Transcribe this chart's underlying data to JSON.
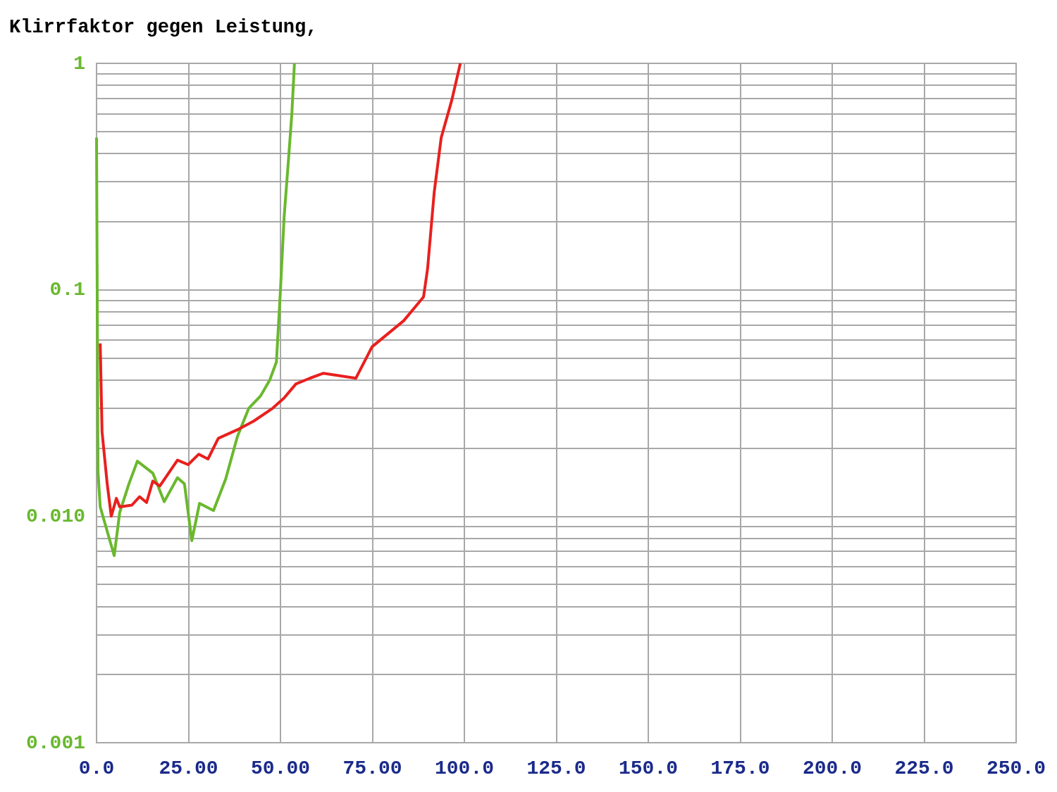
{
  "chart_data": {
    "type": "line",
    "title": "Klirrfaktor gegen Leistung,",
    "log": "y",
    "grid": true,
    "marker": "none",
    "line_style": "solid",
    "xlim": [
      0,
      250
    ],
    "xticks": [
      {
        "value": 0,
        "label": "0.0"
      },
      {
        "value": 25,
        "label": "25.00"
      },
      {
        "value": 50,
        "label": "50.00"
      },
      {
        "value": 75,
        "label": "75.00"
      },
      {
        "value": 100,
        "label": "100.0"
      },
      {
        "value": 125,
        "label": "125.0"
      },
      {
        "value": 150,
        "label": "150.0"
      },
      {
        "value": 175,
        "label": "175.0"
      },
      {
        "value": 200,
        "label": "200.0"
      },
      {
        "value": 225,
        "label": "225.0"
      },
      {
        "value": 250,
        "label": "250.0"
      }
    ],
    "ylim": [
      0.001,
      1
    ],
    "yticks": [
      {
        "value": 0.001,
        "label": "0.001"
      },
      {
        "value": 0.002,
        "label": null
      },
      {
        "value": 0.003,
        "label": null
      },
      {
        "value": 0.004,
        "label": null
      },
      {
        "value": 0.005,
        "label": null
      },
      {
        "value": 0.006,
        "label": null
      },
      {
        "value": 0.007,
        "label": null
      },
      {
        "value": 0.008,
        "label": null
      },
      {
        "value": 0.009,
        "label": null
      },
      {
        "value": 0.01,
        "label": "0.010"
      },
      {
        "value": 0.02,
        "label": null
      },
      {
        "value": 0.03,
        "label": null
      },
      {
        "value": 0.04,
        "label": null
      },
      {
        "value": 0.05,
        "label": null
      },
      {
        "value": 0.06,
        "label": null
      },
      {
        "value": 0.07,
        "label": null
      },
      {
        "value": 0.08,
        "label": null
      },
      {
        "value": 0.09,
        "label": null
      },
      {
        "value": 0.1,
        "label": "0.1"
      },
      {
        "value": 0.2,
        "label": null
      },
      {
        "value": 0.3,
        "label": null
      },
      {
        "value": 0.4,
        "label": null
      },
      {
        "value": 0.5,
        "label": null
      },
      {
        "value": 0.6,
        "label": null
      },
      {
        "value": 0.7,
        "label": null
      },
      {
        "value": 0.8,
        "label": null
      },
      {
        "value": 0.9,
        "label": null
      },
      {
        "value": 1,
        "label": "1"
      }
    ],
    "series": [
      {
        "color": "#6ab82e",
        "x": [
          0,
          0.4,
          1,
          4.8,
          6.3,
          8.8,
          11.1,
          15.3,
          18.4,
          22.0,
          23.9,
          25.9,
          28.0,
          31.8,
          35.1,
          38.3,
          41.4,
          44.6,
          47.1,
          48.9,
          50.0,
          51.0,
          52.1,
          53.1,
          53.8
        ],
        "values": [
          0.47,
          0.0157,
          0.011,
          0.0067,
          0.0104,
          0.0139,
          0.0175,
          0.0155,
          0.0116,
          0.0148,
          0.0139,
          0.0078,
          0.0114,
          0.0106,
          0.0146,
          0.0225,
          0.03,
          0.034,
          0.04,
          0.048,
          0.1,
          0.21,
          0.36,
          0.6,
          1
        ]
      },
      {
        "color": "#e8201e",
        "x": [
          1.0,
          1.5,
          2.9,
          4.0,
          5.4,
          6.3,
          9.6,
          11.7,
          13.6,
          15.3,
          17.2,
          22.0,
          24.9,
          27.8,
          30.3,
          33.1,
          38.3,
          42.7,
          47.9,
          51.0,
          54.2,
          58.0,
          61.7,
          70.5,
          74.9,
          83.5,
          88.9,
          90.0,
          91.8,
          93.7,
          96.6,
          98.9
        ],
        "values": [
          0.058,
          0.0236,
          0.0139,
          0.01,
          0.012,
          0.011,
          0.0112,
          0.0122,
          0.0115,
          0.0143,
          0.0136,
          0.0177,
          0.0169,
          0.0188,
          0.0179,
          0.0221,
          0.0241,
          0.0263,
          0.03,
          0.0333,
          0.0384,
          0.0407,
          0.0428,
          0.0407,
          0.056,
          0.073,
          0.093,
          0.124,
          0.27,
          0.47,
          0.69,
          1
        ]
      }
    ]
  }
}
